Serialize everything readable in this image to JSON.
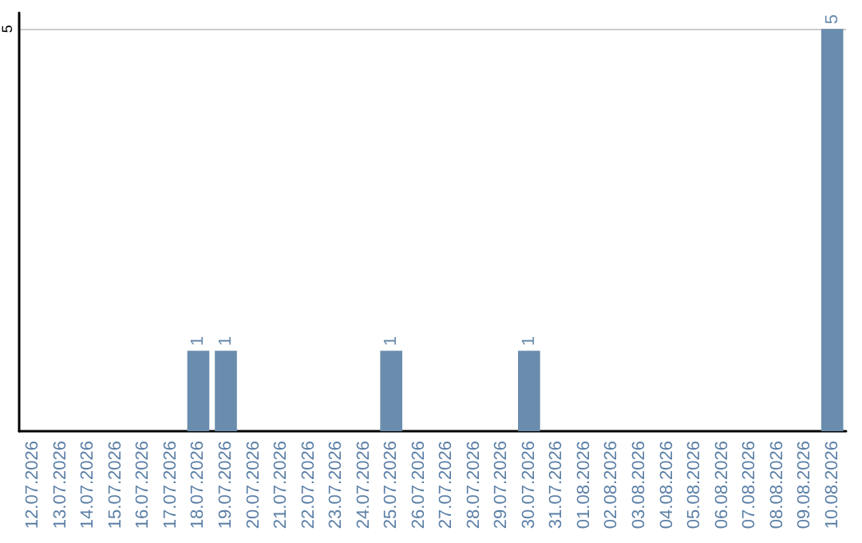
{
  "chart_data": {
    "type": "bar",
    "categories": [
      "12.07.2026",
      "13.07.2026",
      "14.07.2026",
      "15.07.2026",
      "16.07.2026",
      "17.07.2026",
      "18.07.2026",
      "19.07.2026",
      "20.07.2026",
      "21.07.2026",
      "22.07.2026",
      "23.07.2026",
      "24.07.2026",
      "25.07.2026",
      "26.07.2026",
      "27.07.2026",
      "28.07.2026",
      "29.07.2026",
      "30.07.2026",
      "31.07.2026",
      "01.08.2026",
      "02.08.2026",
      "03.08.2026",
      "04.08.2026",
      "05.08.2026",
      "06.08.2026",
      "07.08.2026",
      "08.08.2026",
      "09.08.2026",
      "10.08.2026"
    ],
    "values": [
      0,
      0,
      0,
      0,
      0,
      0,
      1,
      1,
      0,
      0,
      0,
      0,
      0,
      1,
      0,
      0,
      0,
      0,
      1,
      0,
      0,
      0,
      0,
      0,
      0,
      0,
      0,
      0,
      0,
      5
    ],
    "value_labels": [
      null,
      null,
      null,
      null,
      null,
      null,
      "1",
      "1",
      null,
      null,
      null,
      null,
      null,
      "1",
      null,
      null,
      null,
      null,
      "1",
      null,
      null,
      null,
      null,
      null,
      null,
      null,
      null,
      null,
      null,
      "5"
    ],
    "color": "#6a8cad",
    "ylim": [
      0,
      5.2
    ],
    "yticks": [
      5
    ],
    "grid": "y"
  }
}
